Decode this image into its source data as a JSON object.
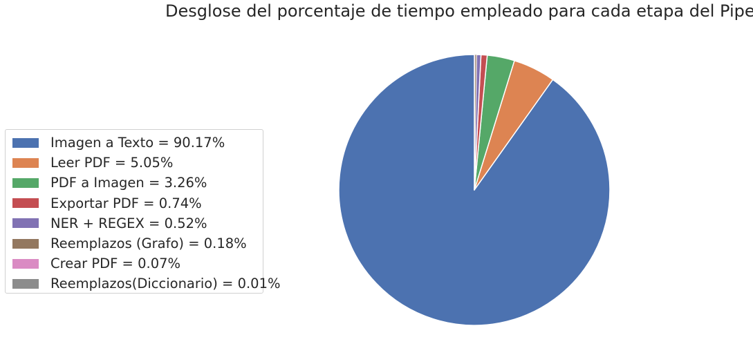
{
  "chart_data": {
    "type": "pie",
    "title": "Desglose del porcentaje de tiempo empleado para cada etapa del Pipeline",
    "start_angle": "top",
    "direction": "counterclockwise",
    "legend_position": "left",
    "slices": [
      {
        "label": "Imagen a Texto = 90.17%",
        "value": 90.17,
        "color": "#4c72b0"
      },
      {
        "label": "Leer PDF = 5.05%",
        "value": 5.05,
        "color": "#dd8452"
      },
      {
        "label": "PDF a Imagen = 3.26%",
        "value": 3.26,
        "color": "#55a868"
      },
      {
        "label": "Exportar PDF = 0.74%",
        "value": 0.74,
        "color": "#c44e52"
      },
      {
        "label": "NER + REGEX = 0.52%",
        "value": 0.52,
        "color": "#8172b3"
      },
      {
        "label": "Reemplazos (Grafo) = 0.18%",
        "value": 0.18,
        "color": "#937860"
      },
      {
        "label": "Crear PDF = 0.07%",
        "value": 0.07,
        "color": "#da8bc3"
      },
      {
        "label": "Reemplazos(Diccionario) = 0.01%",
        "value": 0.01,
        "color": "#8c8c8c"
      }
    ]
  }
}
